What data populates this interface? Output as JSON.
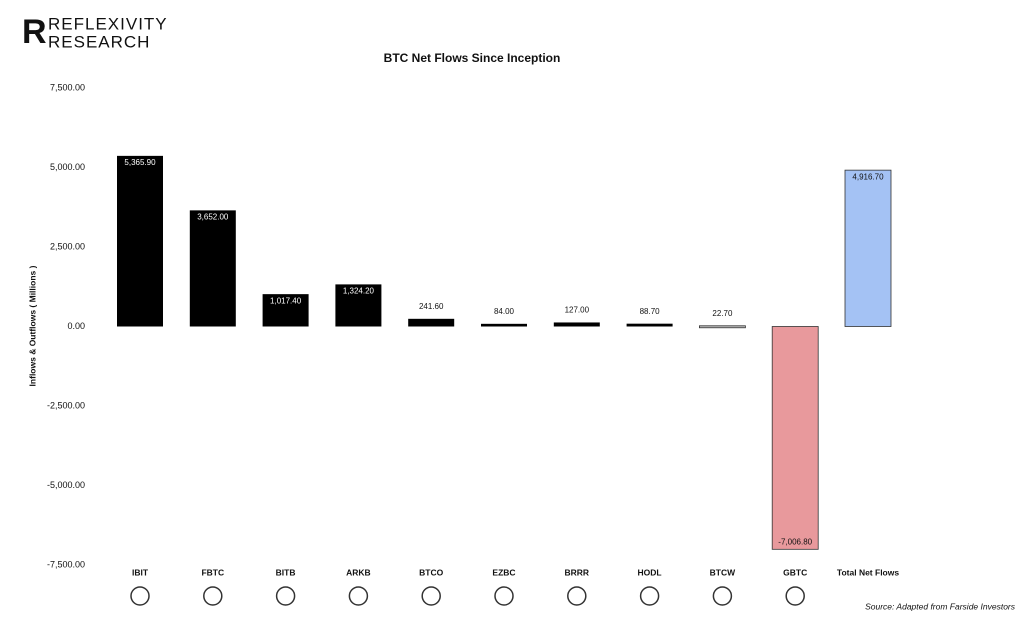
{
  "brand": [
    "REFLEXIVITY",
    "RESEARCH"
  ],
  "chart_data": {
    "type": "bar",
    "title": "BTC Net Flows Since Inception",
    "y_label": "Inflows & Outflows ( Millions )",
    "categories": [
      "IBIT",
      "FBTC",
      "BITB",
      "ARKB",
      "BTCO",
      "EZBC",
      "BRRR",
      "HODL",
      "BTCW",
      "GBTC",
      "Total Net Flows"
    ],
    "values": [
      5365.9,
      3652,
      1017.4,
      1324.2,
      241.6,
      84,
      127,
      88.7,
      22.7,
      -7006.8,
      4916.7
    ],
    "value_labels": [
      "5,365.90",
      "3,652.00",
      "1,017.40",
      "1,324.20",
      "241.60",
      "84.00",
      "127.00",
      "88.70",
      "22.70",
      "-7,006.80",
      "4,916.70"
    ],
    "colors": [
      "#000000",
      "#000000",
      "#000000",
      "#000000",
      "#000000",
      "#000000",
      "#000000",
      "#000000",
      "#bbbbbb",
      "#e8999c",
      "#a4c2f4"
    ],
    "ylim": [
      -7500,
      7500
    ],
    "yticks": [
      {
        "value": -7500,
        "label": "-7,500.00"
      },
      {
        "value": -5000,
        "label": "-5,000.00"
      },
      {
        "value": -2500,
        "label": "-2,500.00"
      },
      {
        "value": 0,
        "label": "0.00"
      },
      {
        "value": 2500,
        "label": "2,500.00"
      },
      {
        "value": 5000,
        "label": "5,000.00"
      },
      {
        "value": 7500,
        "label": "7,500.00"
      }
    ],
    "grid": false,
    "source": "Source: Adapted from Farside Investors"
  }
}
